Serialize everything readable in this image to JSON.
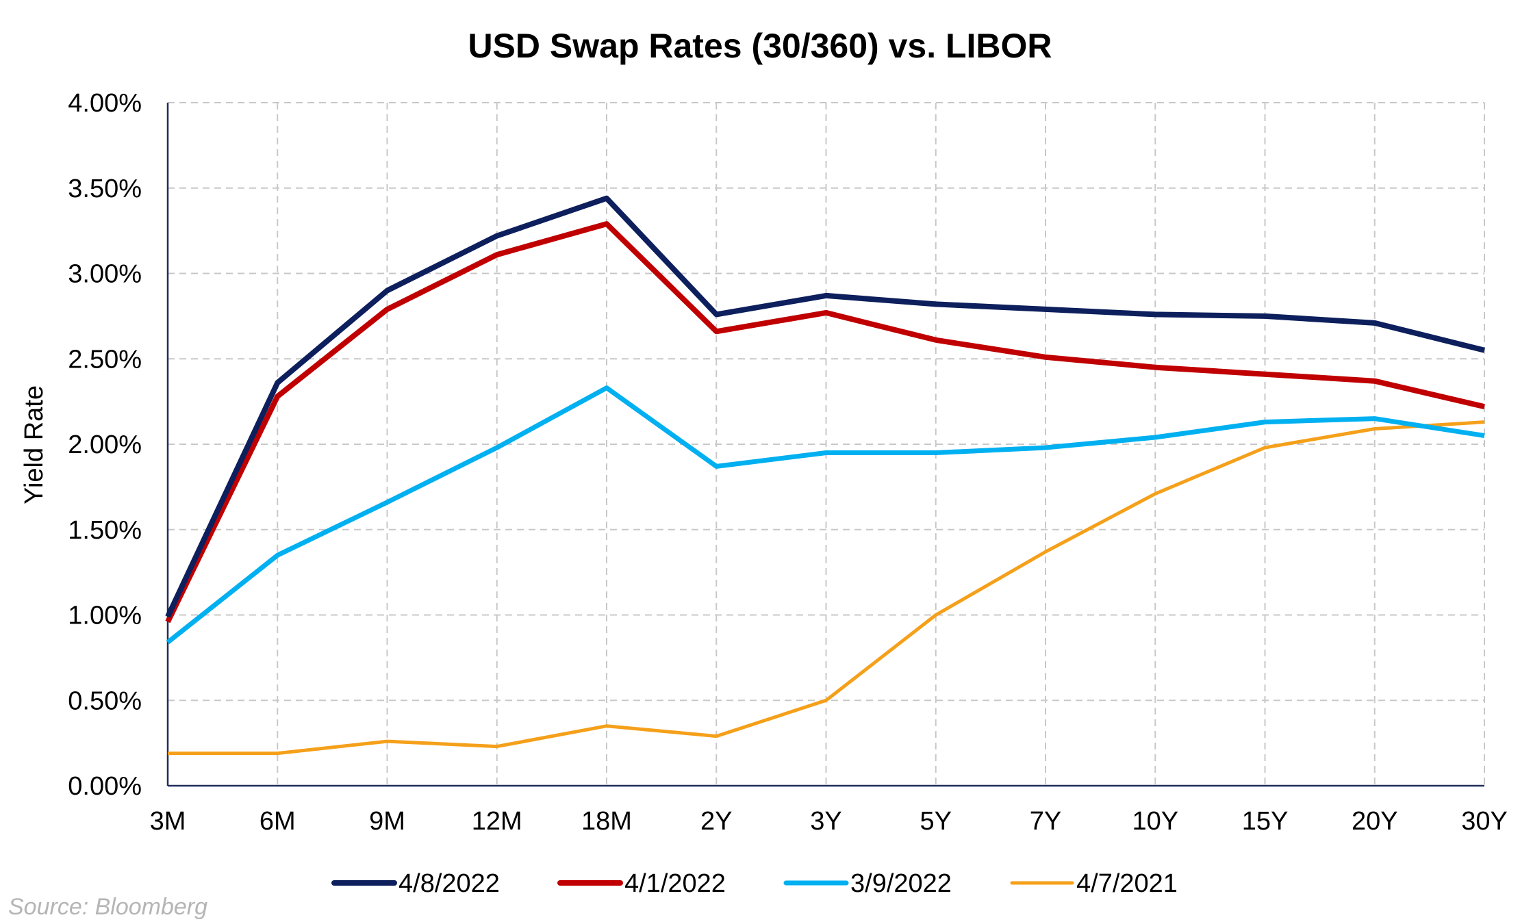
{
  "chart_data": {
    "type": "line",
    "title": "USD Swap Rates (30/360) vs. LIBOR",
    "xlabel": "",
    "ylabel": "Yield Rate",
    "categories": [
      "3M",
      "6M",
      "9M",
      "12M",
      "18M",
      "2Y",
      "3Y",
      "5Y",
      "7Y",
      "10Y",
      "15Y",
      "20Y",
      "30Y"
    ],
    "ylim": [
      0,
      4.0
    ],
    "yticks": [
      0,
      0.5,
      1.0,
      1.5,
      2.0,
      2.5,
      3.0,
      3.5,
      4.0
    ],
    "ytick_labels": [
      "0.00%",
      "0.50%",
      "1.00%",
      "1.50%",
      "2.00%",
      "2.50%",
      "3.00%",
      "3.50%",
      "4.00%"
    ],
    "grid": true,
    "legend_position": "bottom",
    "series": [
      {
        "name": "4/8/2022",
        "color": "#0d1f5c",
        "values": [
          0.99,
          2.36,
          2.9,
          3.22,
          3.44,
          2.76,
          2.87,
          2.82,
          2.79,
          2.76,
          2.75,
          2.71,
          2.55
        ]
      },
      {
        "name": "4/1/2022",
        "color": "#c00000",
        "values": [
          0.96,
          2.28,
          2.79,
          3.11,
          3.29,
          2.66,
          2.77,
          2.61,
          2.51,
          2.45,
          2.41,
          2.37,
          2.22
        ]
      },
      {
        "name": "3/9/2022",
        "color": "#00b0f0",
        "values": [
          0.84,
          1.35,
          1.66,
          1.98,
          2.33,
          1.87,
          1.95,
          1.95,
          1.98,
          2.04,
          2.13,
          2.15,
          2.05
        ]
      },
      {
        "name": "4/7/2021",
        "color": "#f5a01a",
        "values": [
          0.19,
          0.19,
          0.26,
          0.23,
          0.35,
          0.29,
          0.5,
          1.0,
          1.37,
          1.71,
          1.98,
          2.09,
          2.13
        ]
      }
    ]
  },
  "source_note": "Source: Bloomberg"
}
